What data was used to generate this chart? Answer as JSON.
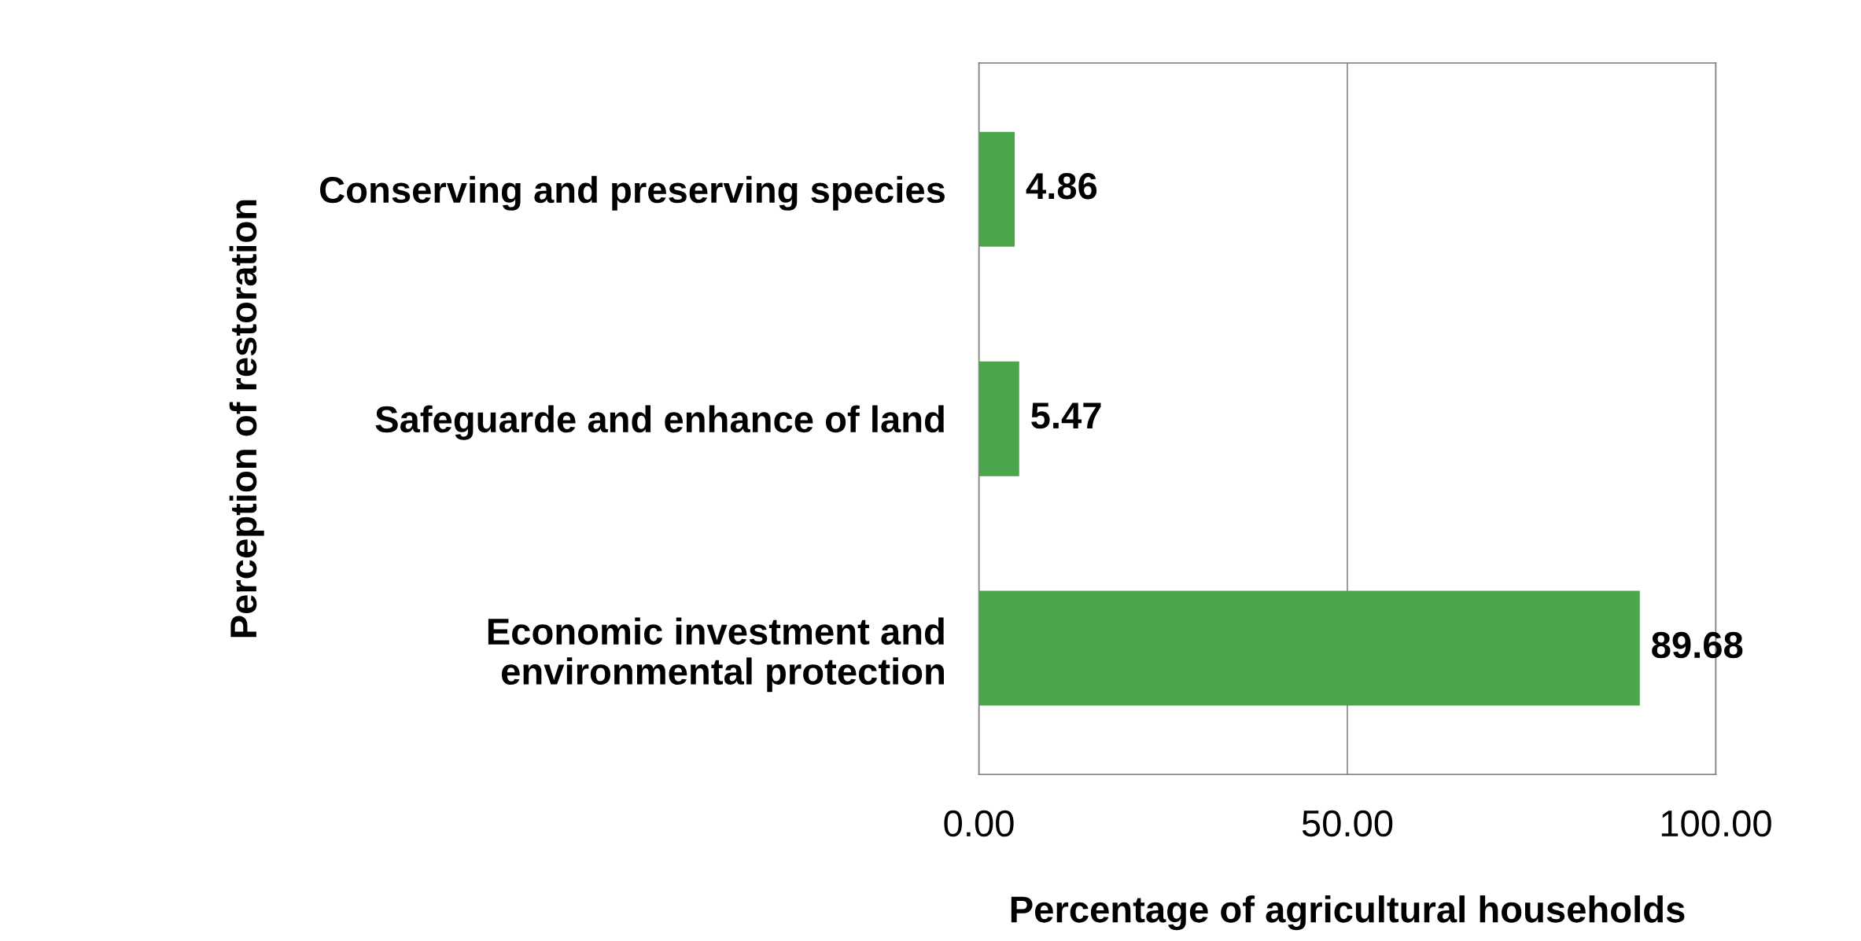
{
  "chart_data": {
    "type": "bar",
    "orientation": "horizontal",
    "xlabel": "Percentage of agricultural households",
    "ylabel": "Perception of restoration",
    "categories": [
      "Conserving and preserving species",
      "Safeguarde and enhance of land",
      "Economic investment and environmental protection"
    ],
    "values": [
      4.86,
      5.47,
      89.68
    ],
    "color": "#4aa54b",
    "data_labels": true,
    "xlim": [
      0,
      100
    ],
    "xticks": [
      {
        "value": 0,
        "label": "0.00"
      },
      {
        "value": 50,
        "label": "50.00"
      },
      {
        "value": 100,
        "label": "100.00"
      }
    ],
    "grid": "x",
    "legend": false
  }
}
